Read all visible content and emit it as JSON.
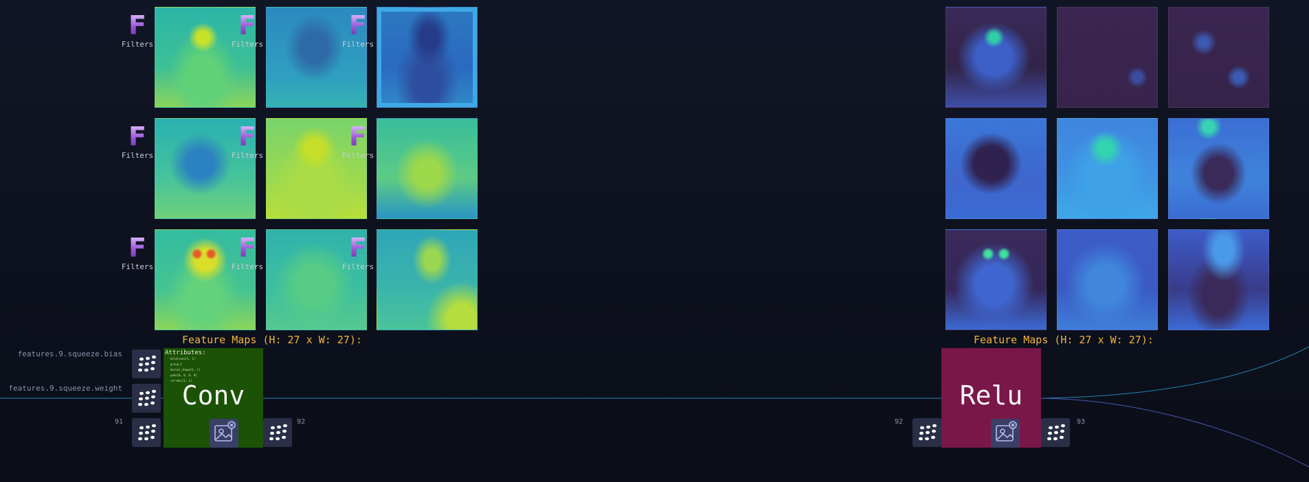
{
  "colors": {
    "background": "#0d111d",
    "conv_node": "#1b5206",
    "relu_node": "#7a1749",
    "feature_map_title": "#f2b53a",
    "edge": "#2aa3d6",
    "filters_badge": "#9a57d6"
  },
  "conv_section": {
    "filters_label": "Filters",
    "filters_letter": "F",
    "feature_maps_title": "Feature Maps (H: 27 x W: 27):",
    "colormap": "viridis"
  },
  "relu_section": {
    "feature_maps_title": "Feature Maps (H: 27 x W: 27):",
    "colormap": "dark-blue"
  },
  "params": {
    "bias": "features.9.squeeze.bias",
    "weight": "features.9.squeeze.weight"
  },
  "conv_node": {
    "label": "Conv",
    "attributes_heading": "Attributes:",
    "attributes": [
      "dilations[1, 1]",
      "group:1",
      "kernel_shape[1, 1]",
      "pads[0, 0, 0, 0]",
      "strides[1, 1]"
    ],
    "input_port": "91",
    "output_port": "92",
    "icon": "image-close-icon",
    "params_icon": "dots-grid-icon"
  },
  "relu_node": {
    "label": "Relu",
    "input_port": "92",
    "output_port": "93",
    "icon": "image-close-icon"
  }
}
